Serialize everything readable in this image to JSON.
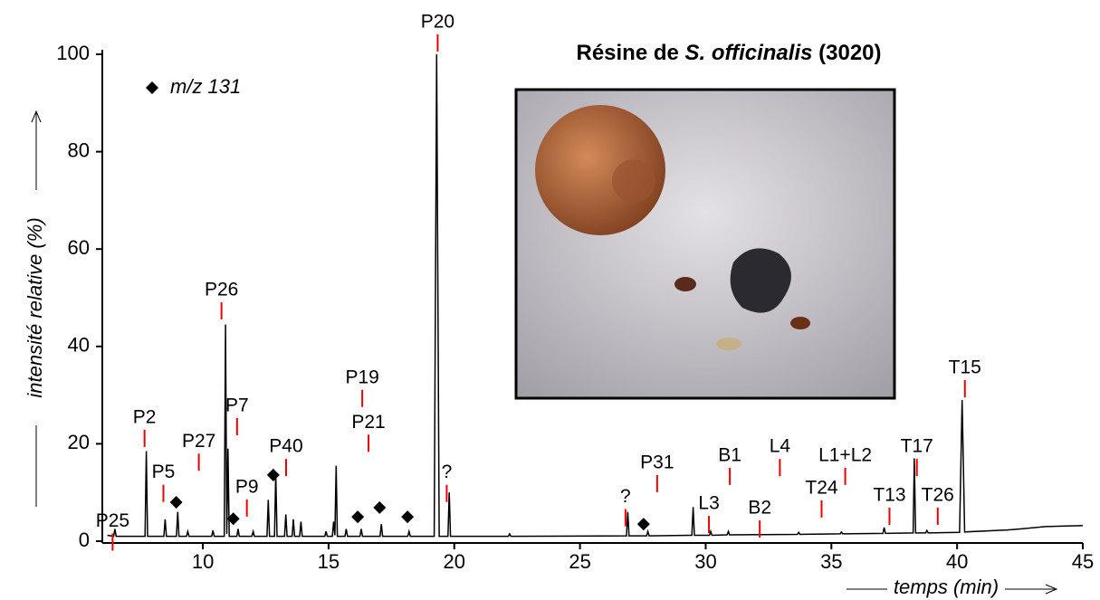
{
  "chart_data": {
    "type": "line",
    "title": [
      "Résine de ",
      "S. officinalis",
      " (3020)"
    ],
    "xlabel": "temps (min)",
    "ylabel": "intensité relative (%)",
    "xlim": [
      6,
      45
    ],
    "ylim": [
      0,
      100
    ],
    "xticks": [
      10,
      15,
      20,
      25,
      30,
      35,
      40,
      45
    ],
    "yticks": [
      0,
      20,
      40,
      60,
      80,
      100
    ],
    "series": [
      {
        "color": "#000000",
        "x": [
          6.2,
          6.45,
          6.5,
          6.55,
          7.7,
          7.75,
          7.8,
          8.45,
          8.5,
          8.55,
          8.95,
          9.0,
          9.05,
          9.35,
          9.4,
          9.45,
          10.35,
          10.4,
          10.45,
          10.85,
          10.9,
          10.95,
          11.0,
          11.05,
          11.35,
          11.4,
          11.45,
          11.95,
          12.0,
          12.05,
          12.55,
          12.6,
          12.65,
          12.85,
          12.9,
          12.95,
          13.25,
          13.3,
          13.35,
          13.55,
          13.6,
          13.65,
          13.85,
          13.9,
          13.95,
          14.85,
          14.9,
          14.95,
          15.15,
          15.2,
          15.25,
          15.3,
          15.35,
          15.65,
          15.7,
          15.75,
          16.25,
          16.3,
          16.35,
          17.05,
          17.1,
          17.15,
          18.15,
          18.2,
          18.25,
          19.2,
          19.3,
          19.4,
          19.75,
          19.8,
          19.85,
          22.15,
          22.2,
          22.25,
          26.85,
          26.9,
          26.95,
          27.65,
          27.7,
          27.75,
          29.45,
          29.5,
          29.55,
          30.15,
          30.2,
          30.25,
          30.85,
          30.9,
          30.95,
          33.65,
          33.7,
          33.75,
          35.35,
          35.4,
          35.45,
          37.05,
          37.1,
          37.15,
          38.25,
          38.3,
          38.35,
          38.75,
          38.8,
          38.85,
          40.1,
          40.2,
          40.3,
          42.0,
          42.5,
          43.5,
          45
        ],
        "values": [
          1.2,
          1,
          2.5,
          1,
          1,
          18.5,
          1,
          1,
          4.5,
          1,
          1,
          6,
          1,
          1,
          2,
          1,
          1,
          2.2,
          1,
          1,
          44.5,
          1.5,
          19,
          1,
          1,
          2.5,
          1,
          1,
          2,
          1,
          1,
          8.5,
          1,
          1,
          14,
          1,
          1,
          5.5,
          1,
          1,
          4.5,
          1,
          1,
          4,
          1,
          1,
          2,
          1,
          1,
          4,
          1.2,
          15.5,
          1,
          1,
          2.5,
          1,
          1,
          2.5,
          1,
          1,
          3.5,
          1,
          1,
          2,
          1,
          1,
          100,
          1,
          1,
          10,
          1,
          1,
          1.5,
          1,
          1.1,
          6,
          1.1,
          1.1,
          2,
          1.1,
          1.2,
          7,
          1.2,
          1.2,
          2,
          1.2,
          1.3,
          2,
          1.3,
          1.4,
          1.8,
          1.4,
          1.5,
          1.9,
          1.5,
          1.6,
          2.8,
          1.6,
          1.7,
          17,
          1.7,
          1.7,
          2.2,
          1.7,
          1.8,
          29,
          1.9,
          2.3,
          2.5,
          3,
          3.2
        ]
      }
    ],
    "annotations": [
      {
        "text": "P25",
        "x": 6.41,
        "y": 4
      },
      {
        "text": "P2",
        "x": 7.68,
        "y": 25.3
      },
      {
        "text": "P5",
        "x": 8.43,
        "y": 14
      },
      {
        "text": "P27",
        "x": 9.84,
        "y": 20.4
      },
      {
        "text": "P7",
        "x": 11.36,
        "y": 27.7
      },
      {
        "text": "P26",
        "x": 10.74,
        "y": 51.5
      },
      {
        "text": "P9",
        "x": 11.75,
        "y": 11
      },
      {
        "text": "P40",
        "x": 13.31,
        "y": 19.3
      },
      {
        "text": "P19",
        "x": 16.34,
        "y": 33.5
      },
      {
        "text": "P21",
        "x": 16.59,
        "y": 24.3
      },
      {
        "text": "P20",
        "x": 19.34,
        "y": 106.5
      },
      {
        "text": "?",
        "x": 19.7,
        "y": 14
      },
      {
        "text": "?",
        "x": 26.81,
        "y": 9
      },
      {
        "text": "P31",
        "x": 28.07,
        "y": 16
      },
      {
        "text": "L3",
        "x": 30.13,
        "y": 7.6
      },
      {
        "text": "B1",
        "x": 30.96,
        "y": 17.5
      },
      {
        "text": "B2",
        "x": 32.15,
        "y": 6.7
      },
      {
        "text": "L4",
        "x": 32.95,
        "y": 19.3
      },
      {
        "text": "T24",
        "x": 34.61,
        "y": 10.8
      },
      {
        "text": "L1+L2",
        "x": 35.55,
        "y": 17.5
      },
      {
        "text": "T13",
        "x": 37.31,
        "y": 9.3
      },
      {
        "text": "T17",
        "x": 38.4,
        "y": 19.3
      },
      {
        "text": "T26",
        "x": 39.23,
        "y": 9.3
      },
      {
        "text": "T15",
        "x": 40.31,
        "y": 35.5
      }
    ],
    "markers": {
      "name": "m/z 131",
      "x": [
        8.94,
        11.21,
        12.8,
        16.16,
        17.03,
        18.14,
        27.53
      ],
      "y": [
        8,
        4.6,
        13.6,
        5,
        6.9,
        5,
        3.5
      ]
    }
  }
}
